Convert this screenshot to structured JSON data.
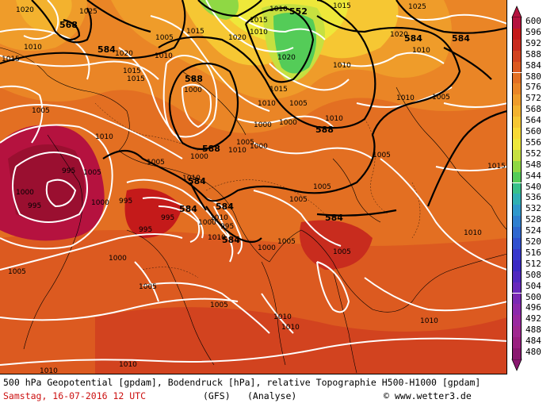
{
  "map": {
    "legend": {
      "levels": [
        "600",
        "596",
        "592",
        "588",
        "584",
        "580",
        "576",
        "572",
        "568",
        "564",
        "560",
        "556",
        "552",
        "548",
        "544",
        "540",
        "536",
        "532",
        "528",
        "524",
        "520",
        "516",
        "512",
        "508",
        "504",
        "500",
        "496",
        "492",
        "488",
        "484",
        "480"
      ],
      "colors": [
        "#b5123f",
        "#c41a1a",
        "#c82c1e",
        "#d2431f",
        "#dc5a20",
        "#e36f22",
        "#ea8526",
        "#ef9c2a",
        "#f3b22e",
        "#f6c733",
        "#f8da36",
        "#eee83a",
        "#c6e040",
        "#8fd844",
        "#54cc58",
        "#38c08a",
        "#30b0b4",
        "#3098cc",
        "#3080d0",
        "#3068d0",
        "#3050d0",
        "#3838cc",
        "#3a28c4",
        "#5028c0",
        "#6828bc",
        "#7a28b4",
        "#8c28ac",
        "#9a28a0",
        "#a02890",
        "#9a2080",
        "#8a1870"
      ]
    },
    "isobar_labels": [
      "1020",
      "1025",
      "1010",
      "1015",
      "1005",
      "1000",
      "995",
      "1005",
      "1010",
      "1015",
      "1020",
      "1025",
      "1010",
      "1015",
      "1000",
      "1005",
      "995",
      "1000",
      "1005",
      "1010",
      "1015"
    ],
    "geopotential_labels": [
      "568",
      "584",
      "588",
      "588",
      "552",
      "584",
      "584",
      "584",
      "584",
      "588"
    ],
    "caption_line1": "500 hPa Geopotential [gpdam], Bodendruck [hPa], relative Topographie H500-H1000 [gpdam]",
    "date": "Samstag, 16-07-2016  12 UTC",
    "model": "(GFS)",
    "analysis": "(Analyse)",
    "credit": "© www.wetter3.de"
  }
}
